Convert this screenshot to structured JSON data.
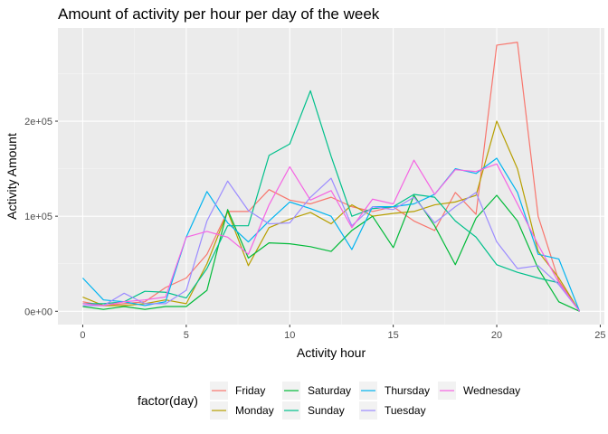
{
  "chart_data": {
    "type": "line",
    "title": "Amount of activity per hour per day of the week",
    "xlabel": "Activity hour",
    "ylabel": "Activity Amount",
    "xlim": [
      -1.2,
      25.2
    ],
    "ylim": [
      -14000,
      298000
    ],
    "x_ticks": [
      0,
      5,
      10,
      15,
      20,
      25
    ],
    "x_tick_labels": [
      "0",
      "5",
      "10",
      "15",
      "20",
      "25"
    ],
    "y_ticks": [
      0,
      100000,
      200000
    ],
    "y_tick_labels": [
      "0e+00",
      "1e+05",
      "2e+05"
    ],
    "grid": true,
    "legend": {
      "title": "factor(day)",
      "position": "bottom",
      "columns": [
        [
          "Friday",
          "Monday"
        ],
        [
          "Saturday",
          "Sunday"
        ],
        [
          "Thursday",
          "Tuesday"
        ],
        [
          "Wednesday"
        ]
      ]
    },
    "x": [
      0,
      1,
      2,
      3,
      4,
      5,
      6,
      7,
      8,
      9,
      10,
      11,
      12,
      13,
      14,
      15,
      16,
      17,
      18,
      19,
      20,
      21,
      22,
      23,
      24
    ],
    "series": [
      {
        "name": "Friday",
        "color": "#F8766D",
        "values": [
          10000,
          6000,
          8000,
          10000,
          25000,
          35000,
          60000,
          105000,
          105000,
          128000,
          117000,
          113000,
          120000,
          110000,
          105000,
          110000,
          95000,
          85000,
          125000,
          102000,
          280000,
          283000,
          100000,
          32000,
          0
        ]
      },
      {
        "name": "Monday",
        "color": "#B79F00",
        "values": [
          15000,
          6000,
          6000,
          8000,
          12000,
          8000,
          50000,
          105000,
          48000,
          88000,
          97000,
          104000,
          92000,
          112000,
          100000,
          103000,
          105000,
          112000,
          115000,
          122000,
          200000,
          150000,
          63000,
          35000,
          0
        ]
      },
      {
        "name": "Saturday",
        "color": "#00BA38",
        "values": [
          5000,
          2000,
          5000,
          2000,
          5000,
          5000,
          22000,
          107000,
          56000,
          72000,
          71000,
          68000,
          63000,
          85000,
          100000,
          67000,
          122000,
          90000,
          49000,
          98000,
          122000,
          95000,
          45000,
          10000,
          0
        ]
      },
      {
        "name": "Sunday",
        "color": "#00C08B",
        "values": [
          8000,
          8000,
          10000,
          21000,
          20000,
          14000,
          45000,
          90000,
          90000,
          164000,
          176000,
          232000,
          163000,
          100000,
          108000,
          110000,
          123000,
          120000,
          95000,
          78000,
          49000,
          41000,
          35000,
          30000,
          0
        ]
      },
      {
        "name": "Thursday",
        "color": "#00B4F0",
        "values": [
          35000,
          12000,
          10000,
          6000,
          10000,
          78000,
          126000,
          93000,
          73000,
          95000,
          115000,
          108000,
          100000,
          65000,
          110000,
          110000,
          113000,
          123000,
          150000,
          145000,
          161000,
          125000,
          60000,
          55000,
          0
        ]
      },
      {
        "name": "Tuesday",
        "color": "#9C8CFF",
        "values": [
          6000,
          6000,
          19000,
          8000,
          8000,
          22000,
          95000,
          137000,
          106000,
          92000,
          93000,
          120000,
          140000,
          90000,
          110000,
          107000,
          120000,
          93000,
          110000,
          125000,
          73000,
          45000,
          48000,
          28000,
          0
        ]
      },
      {
        "name": "Wednesday",
        "color": "#F564E3",
        "values": [
          8000,
          6000,
          10000,
          12000,
          15000,
          78000,
          84000,
          78000,
          60000,
          112000,
          152000,
          117000,
          127000,
          88000,
          118000,
          113000,
          159000,
          123000,
          149000,
          147000,
          155000,
          113000,
          70000,
          30000,
          0
        ]
      }
    ]
  }
}
